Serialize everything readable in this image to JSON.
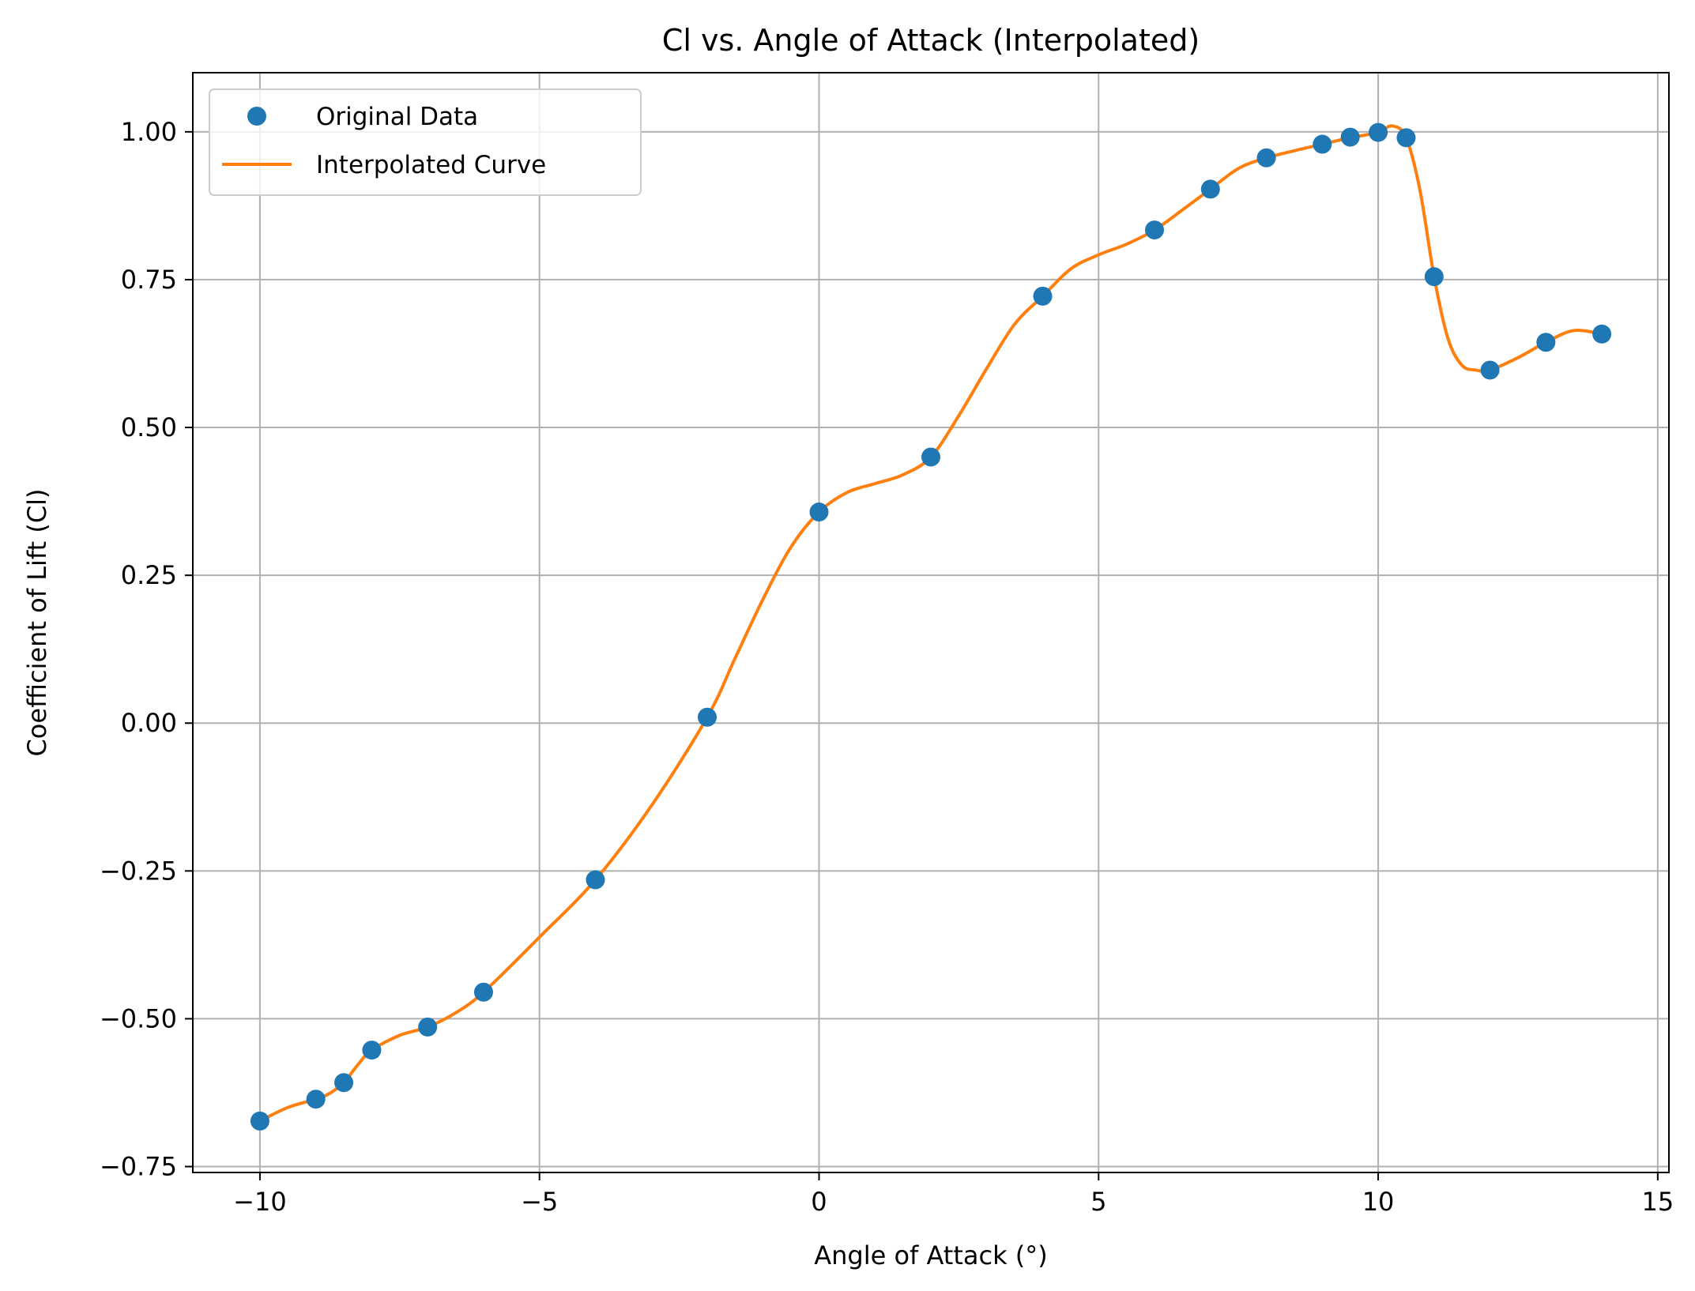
{
  "chart_data": {
    "type": "line",
    "title": "Cl vs. Angle of Attack (Interpolated)",
    "xlabel": "Angle of Attack (°)",
    "ylabel": "Coefficient of Lift (Cl)",
    "xlim": [
      -11.2,
      15.2
    ],
    "ylim": [
      -0.76,
      1.1
    ],
    "xticks": [
      -10,
      -5,
      0,
      5,
      10,
      15
    ],
    "xtick_labels": [
      "−10",
      "−5",
      "0",
      "5",
      "10",
      "15"
    ],
    "yticks": [
      -0.75,
      -0.5,
      -0.25,
      0.0,
      0.25,
      0.5,
      0.75,
      1.0
    ],
    "ytick_labels": [
      "−0.75",
      "−0.50",
      "−0.25",
      "0.00",
      "0.25",
      "0.50",
      "0.75",
      "1.00"
    ],
    "grid": true,
    "legend_position": "upper-left",
    "series": [
      {
        "name": "Original Data",
        "kind": "scatter",
        "color": "#1f77b4",
        "x": [
          -10,
          -9,
          -8.5,
          -8,
          -7,
          -6,
          -4,
          -2,
          0,
          2,
          4,
          6,
          7,
          8,
          9,
          9.5,
          10,
          10.5,
          11,
          12,
          13,
          14
        ],
        "y": [
          -0.673,
          -0.636,
          -0.608,
          -0.553,
          -0.514,
          -0.455,
          -0.265,
          0.01,
          0.357,
          0.45,
          0.722,
          0.834,
          0.903,
          0.956,
          0.979,
          0.991,
          0.999,
          0.99,
          0.755,
          0.597,
          0.644,
          0.658
        ]
      },
      {
        "name": "Interpolated Curve",
        "kind": "line",
        "color": "#ff7f0e",
        "x": [
          -10,
          -9.5,
          -9,
          -8.75,
          -8.5,
          -8.25,
          -8,
          -7.5,
          -7,
          -6.5,
          -6,
          -5,
          -4,
          -3,
          -2,
          -1.5,
          -1,
          -0.5,
          0,
          0.5,
          1,
          1.5,
          2,
          2.5,
          3,
          3.5,
          4,
          4.5,
          5,
          5.5,
          6,
          6.5,
          7,
          7.5,
          8,
          8.5,
          9,
          9.5,
          10,
          10.25,
          10.5,
          10.75,
          11,
          11.25,
          11.5,
          11.75,
          12,
          12.5,
          13,
          13.5,
          14
        ],
        "y": [
          -0.673,
          -0.65,
          -0.636,
          -0.626,
          -0.608,
          -0.578,
          -0.553,
          -0.528,
          -0.514,
          -0.49,
          -0.455,
          -0.362,
          -0.265,
          -0.14,
          0.01,
          0.11,
          0.21,
          0.298,
          0.357,
          0.39,
          0.405,
          0.42,
          0.45,
          0.52,
          0.6,
          0.675,
          0.722,
          0.768,
          0.792,
          0.81,
          0.834,
          0.868,
          0.903,
          0.938,
          0.956,
          0.968,
          0.979,
          0.99,
          0.999,
          1.01,
          0.99,
          0.9,
          0.755,
          0.65,
          0.605,
          0.597,
          0.597,
          0.618,
          0.644,
          0.664,
          0.658
        ]
      }
    ]
  }
}
